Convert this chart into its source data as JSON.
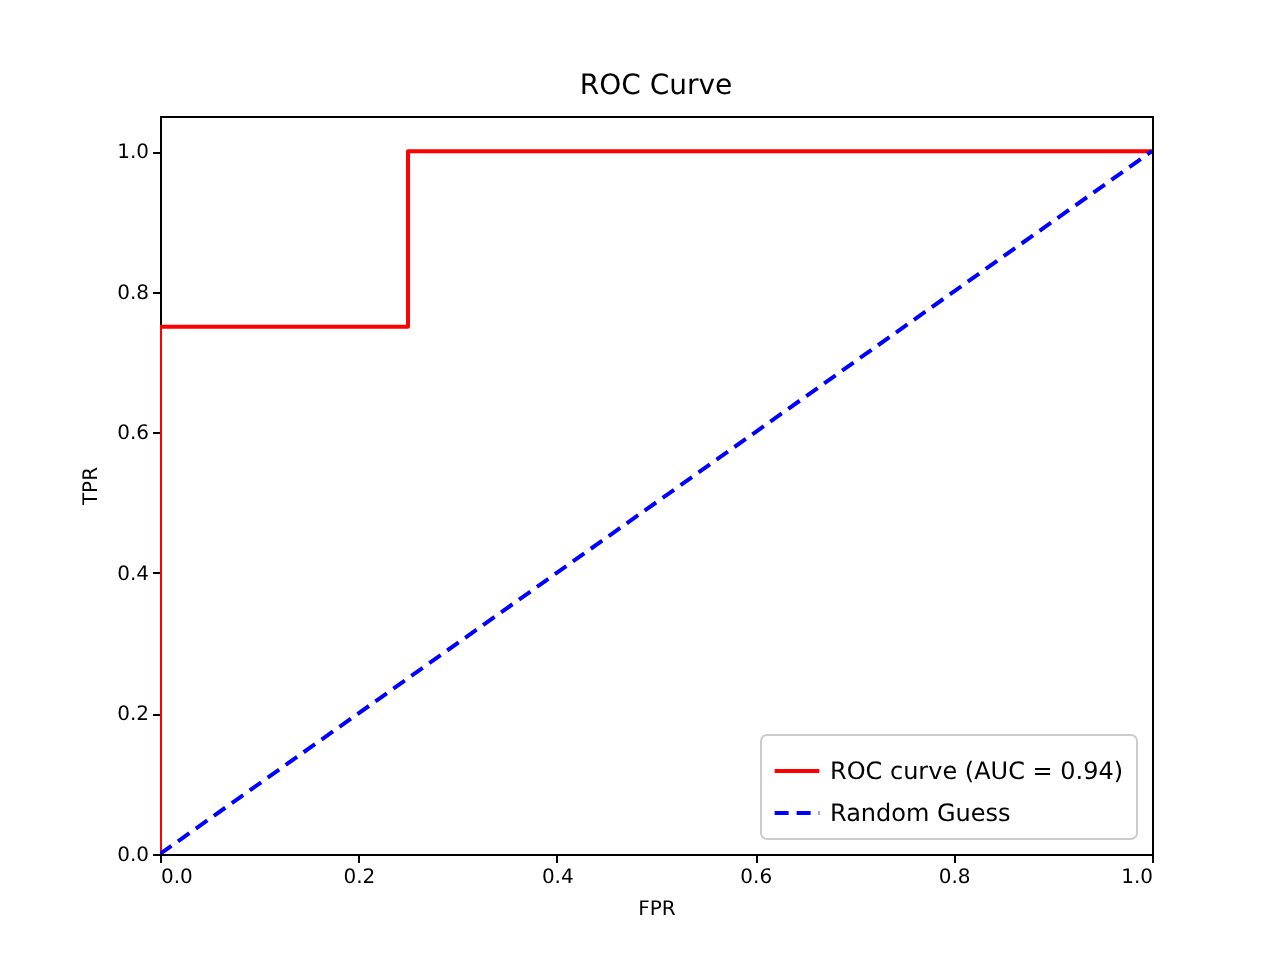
{
  "chart_data": {
    "type": "line",
    "title": "ROC Curve",
    "xlabel": "FPR",
    "ylabel": "TPR",
    "xlim": [
      0,
      1
    ],
    "ylim": [
      0,
      1.05
    ],
    "xticks": [
      {
        "value": 0,
        "label": "0.0"
      },
      0.2,
      0.4,
      0.6,
      0.8,
      {
        "value": 1,
        "label": "1.0"
      }
    ],
    "yticks": [
      {
        "value": 0,
        "label": "0.0"
      },
      0.2,
      0.4,
      0.6,
      0.8,
      {
        "value": 1,
        "label": "1.0"
      }
    ],
    "grid": false,
    "legend": "bottom right",
    "series": [
      {
        "name": "ROC curve (AUC = 0.94)",
        "color": "#ff0000",
        "line_style": "solid",
        "x": [
          0,
          0,
          0.25,
          0.25,
          1
        ],
        "values": [
          0,
          0.75,
          0.75,
          1,
          1
        ]
      },
      {
        "name": "Random Guess",
        "color": "#0000ff",
        "line_style": "dashed",
        "x": [
          0,
          1
        ],
        "values": [
          0,
          1
        ]
      }
    ]
  }
}
